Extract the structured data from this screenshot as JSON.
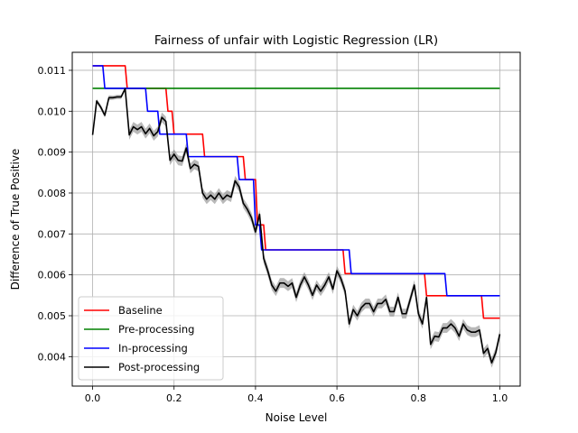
{
  "chart_data": {
    "type": "line",
    "title": "Fairness of unfair with Logistic Regression (LR)",
    "xlabel": "Noise Level",
    "ylabel": "Difference of True Positive",
    "xlim": [
      -0.05,
      1.05
    ],
    "ylim": [
      0.00328,
      0.01144
    ],
    "x_ticks": [
      0.0,
      0.2,
      0.4,
      0.6,
      0.8,
      1.0
    ],
    "x_tick_labels": [
      "0.0",
      "0.2",
      "0.4",
      "0.6",
      "0.8",
      "1.0"
    ],
    "y_ticks": [
      0.004,
      0.005,
      0.006,
      0.007,
      0.008,
      0.009,
      0.01,
      0.011
    ],
    "y_tick_labels": [
      "0.004",
      "0.005",
      "0.006",
      "0.007",
      "0.008",
      "0.009",
      "0.010",
      "0.011"
    ],
    "grid": true,
    "legend_position": "lower-left",
    "series": [
      {
        "name": "Baseline",
        "color": "#ff0000",
        "style": "step",
        "points": [
          [
            0.0,
            0.01111
          ],
          [
            0.08,
            0.01111
          ],
          [
            0.085,
            0.01056
          ],
          [
            0.18,
            0.01056
          ],
          [
            0.185,
            0.01
          ],
          [
            0.195,
            0.01
          ],
          [
            0.2,
            0.00944
          ],
          [
            0.27,
            0.00944
          ],
          [
            0.275,
            0.00889
          ],
          [
            0.37,
            0.00889
          ],
          [
            0.375,
            0.00833
          ],
          [
            0.4,
            0.00833
          ],
          [
            0.405,
            0.00722
          ],
          [
            0.42,
            0.00722
          ],
          [
            0.425,
            0.00661
          ],
          [
            0.615,
            0.00661
          ],
          [
            0.62,
            0.00603
          ],
          [
            0.815,
            0.00603
          ],
          [
            0.82,
            0.00549
          ],
          [
            0.955,
            0.00549
          ],
          [
            0.96,
            0.00494
          ],
          [
            1.0,
            0.00494
          ]
        ]
      },
      {
        "name": "Pre-processing",
        "color": "#008000",
        "style": "step",
        "points": [
          [
            0.0,
            0.01056
          ],
          [
            1.0,
            0.01056
          ]
        ]
      },
      {
        "name": "In-processing",
        "color": "#0000ff",
        "style": "step",
        "points": [
          [
            0.0,
            0.01111
          ],
          [
            0.025,
            0.01111
          ],
          [
            0.03,
            0.01056
          ],
          [
            0.13,
            0.01056
          ],
          [
            0.135,
            0.01
          ],
          [
            0.16,
            0.01
          ],
          [
            0.165,
            0.00944
          ],
          [
            0.23,
            0.00944
          ],
          [
            0.235,
            0.00889
          ],
          [
            0.355,
            0.00889
          ],
          [
            0.36,
            0.00833
          ],
          [
            0.395,
            0.00833
          ],
          [
            0.4,
            0.00722
          ],
          [
            0.41,
            0.00722
          ],
          [
            0.415,
            0.00661
          ],
          [
            0.63,
            0.00661
          ],
          [
            0.635,
            0.00603
          ],
          [
            0.865,
            0.00603
          ],
          [
            0.87,
            0.00549
          ],
          [
            1.0,
            0.00549
          ]
        ]
      },
      {
        "name": "Post-processing",
        "color": "#000000",
        "style": "line",
        "band_color": "#808080",
        "x": [
          0.0,
          0.01,
          0.02,
          0.03,
          0.04,
          0.05,
          0.06,
          0.07,
          0.08,
          0.09,
          0.1,
          0.11,
          0.12,
          0.13,
          0.14,
          0.15,
          0.16,
          0.17,
          0.18,
          0.19,
          0.2,
          0.21,
          0.22,
          0.23,
          0.24,
          0.25,
          0.26,
          0.27,
          0.28,
          0.29,
          0.3,
          0.31,
          0.32,
          0.33,
          0.34,
          0.35,
          0.36,
          0.37,
          0.38,
          0.39,
          0.4,
          0.41,
          0.42,
          0.43,
          0.44,
          0.45,
          0.46,
          0.47,
          0.48,
          0.49,
          0.5,
          0.51,
          0.52,
          0.53,
          0.54,
          0.55,
          0.56,
          0.57,
          0.58,
          0.59,
          0.6,
          0.61,
          0.62,
          0.63,
          0.64,
          0.65,
          0.66,
          0.67,
          0.68,
          0.69,
          0.7,
          0.71,
          0.72,
          0.73,
          0.74,
          0.75,
          0.76,
          0.77,
          0.78,
          0.79,
          0.8,
          0.81,
          0.82,
          0.83,
          0.84,
          0.85,
          0.86,
          0.87,
          0.88,
          0.89,
          0.9,
          0.91,
          0.92,
          0.93,
          0.94,
          0.95,
          0.96,
          0.97,
          0.98,
          0.99,
          1.0
        ],
        "y": [
          0.00942,
          0.01025,
          0.0101,
          0.0099,
          0.01033,
          0.01033,
          0.01035,
          0.01035,
          0.01055,
          0.00942,
          0.00962,
          0.00955,
          0.00962,
          0.00945,
          0.00958,
          0.0094,
          0.0095,
          0.00985,
          0.00975,
          0.0088,
          0.00895,
          0.0088,
          0.00878,
          0.0091,
          0.0086,
          0.0087,
          0.00865,
          0.008,
          0.00785,
          0.00795,
          0.00785,
          0.008,
          0.00785,
          0.00795,
          0.0079,
          0.0083,
          0.00815,
          0.00775,
          0.0076,
          0.0074,
          0.00705,
          0.00748,
          0.0064,
          0.0061,
          0.00575,
          0.0056,
          0.0058,
          0.0058,
          0.00572,
          0.0058,
          0.00545,
          0.00575,
          0.00595,
          0.00575,
          0.0055,
          0.00575,
          0.0056,
          0.00575,
          0.00595,
          0.00565,
          0.0061,
          0.0059,
          0.0056,
          0.0048,
          0.00515,
          0.005,
          0.0052,
          0.0053,
          0.0053,
          0.0051,
          0.0053,
          0.0053,
          0.0054,
          0.0051,
          0.0051,
          0.00545,
          0.00505,
          0.00505,
          0.0054,
          0.00575,
          0.00505,
          0.0048,
          0.00545,
          0.0043,
          0.0045,
          0.00448,
          0.0047,
          0.0047,
          0.0048,
          0.0047,
          0.0045,
          0.0048,
          0.00465,
          0.0046,
          0.0046,
          0.00465,
          0.00408,
          0.0042,
          0.00385,
          0.0041,
          0.00455
        ],
        "y_err": [
          3e-05,
          5e-05,
          6e-05,
          6e-05,
          6e-05,
          5e-05,
          5e-05,
          5e-05,
          5e-05,
          0.00012,
          0.00012,
          0.00012,
          0.00012,
          0.00012,
          0.00012,
          0.00012,
          0.00012,
          0.00012,
          0.00012,
          0.00012,
          0.00012,
          0.00012,
          0.00012,
          0.00012,
          0.00012,
          0.00012,
          0.00012,
          0.00012,
          0.00012,
          0.00012,
          0.00012,
          0.00012,
          0.00012,
          0.00012,
          0.00012,
          0.00012,
          0.00012,
          0.00012,
          0.00012,
          0.00012,
          0.00012,
          0.00012,
          0.00012,
          0.00012,
          0.00012,
          0.00012,
          0.00012,
          0.00012,
          0.00012,
          0.00012,
          0.00012,
          0.00012,
          0.00012,
          0.00012,
          0.00012,
          0.00012,
          0.00012,
          0.00012,
          0.00012,
          0.00012,
          0.00012,
          0.00012,
          0.00012,
          0.00012,
          0.00012,
          0.00012,
          0.00012,
          0.00012,
          0.00012,
          0.00012,
          0.00012,
          0.00012,
          0.00012,
          0.00012,
          0.00012,
          0.00012,
          0.00012,
          0.00012,
          0.00012,
          0.00012,
          0.00012,
          0.00012,
          0.00012,
          0.00012,
          0.00012,
          0.00012,
          0.00012,
          0.00012,
          0.00012,
          0.00012,
          0.00012,
          0.00012,
          0.00012,
          0.00012,
          0.00012,
          0.00012,
          0.00012,
          0.00012,
          0.00012,
          0.00012,
          0.00012
        ]
      }
    ]
  }
}
